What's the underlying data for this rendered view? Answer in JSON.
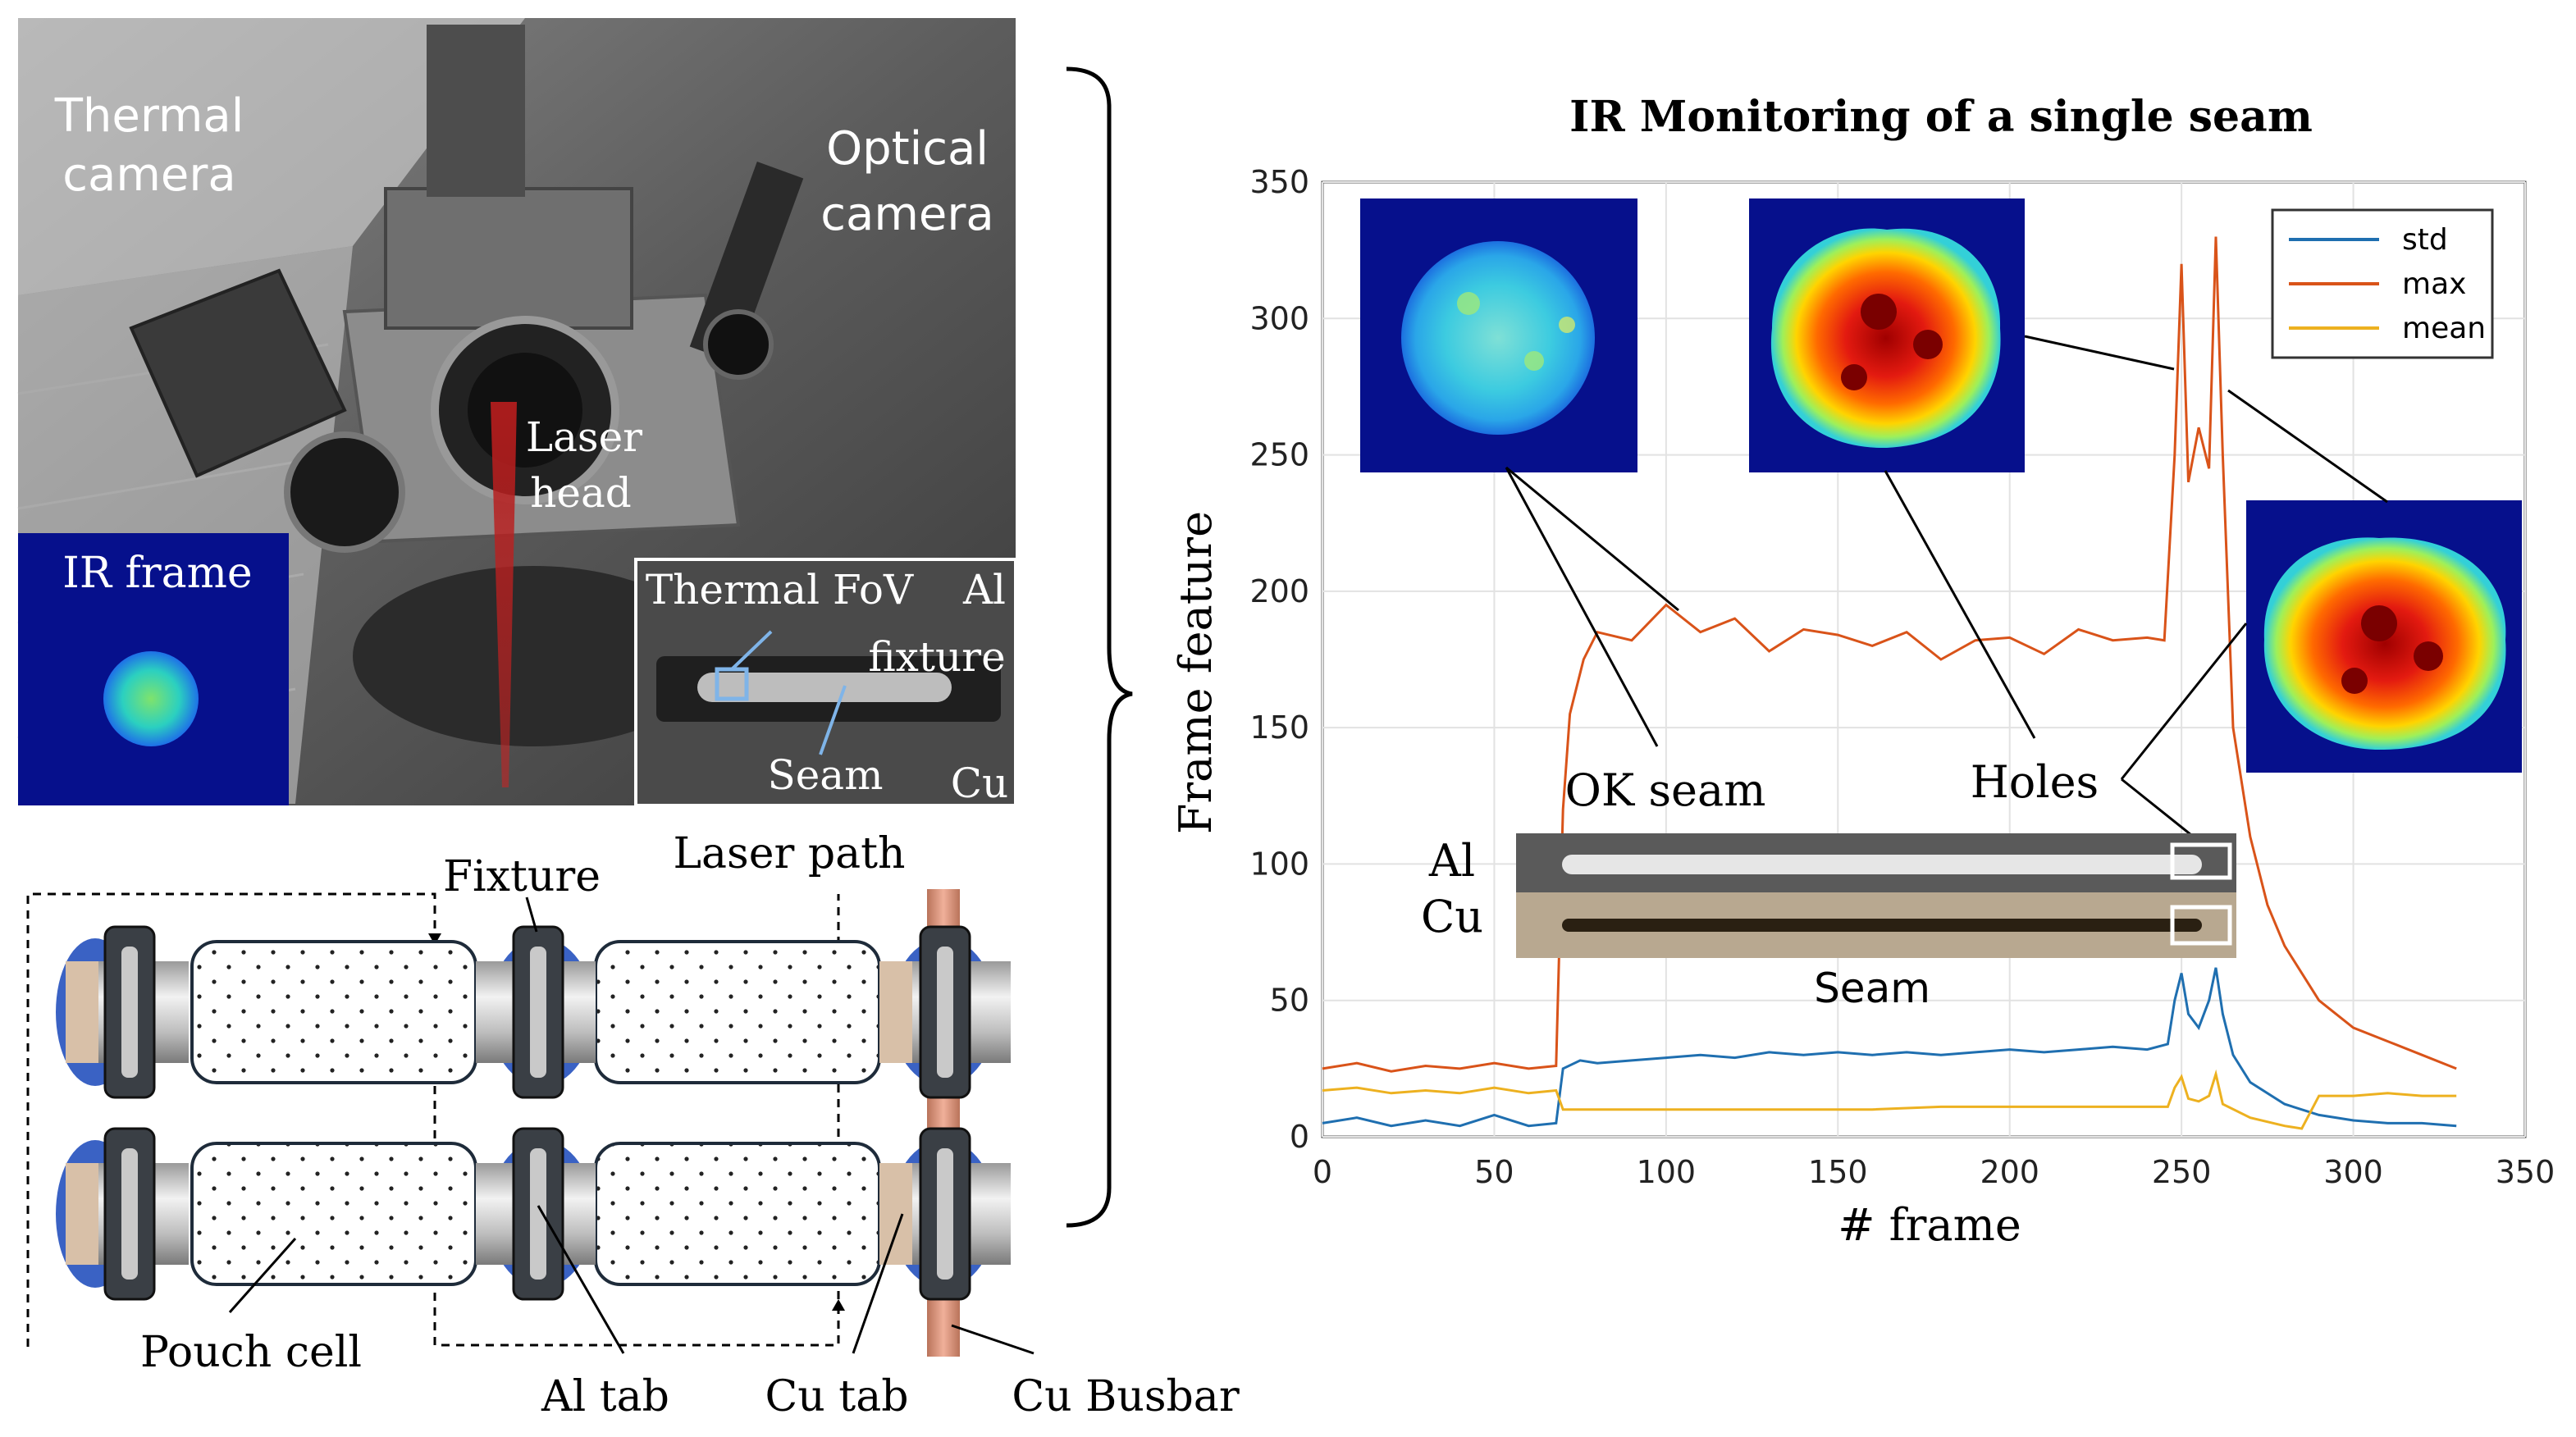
{
  "photo": {
    "thermal_camera": [
      "Thermal",
      "camera"
    ],
    "optical_camera": [
      "Optical",
      "camera"
    ],
    "laser_head": [
      "Laser",
      "head"
    ],
    "ir_frame": "IR frame",
    "inset": {
      "thermal_fov": "Thermal FoV",
      "al": "Al",
      "fixture": "fixture",
      "seam": "Seam",
      "cu": "Cu"
    }
  },
  "schematic": {
    "fixture": "Fixture",
    "laser_path": "Laser path",
    "pouch_cell": "Pouch cell",
    "al_tab": "Al tab",
    "cu_tab": "Cu tab",
    "cu_busbar": "Cu Busbar"
  },
  "chart_data": {
    "type": "line",
    "title": "IR Monitoring of a single seam",
    "xlabel": "# frame",
    "ylabel": "Frame feature",
    "xlim": [
      0,
      350
    ],
    "ylim": [
      0,
      350
    ],
    "xticks": [
      0,
      50,
      100,
      150,
      200,
      250,
      300,
      350
    ],
    "yticks": [
      0,
      50,
      100,
      150,
      200,
      250,
      300,
      350
    ],
    "grid": true,
    "legend_position": "top-right",
    "series": [
      {
        "name": "std",
        "color": "#1f6fb0",
        "points": [
          [
            0,
            5
          ],
          [
            10,
            7
          ],
          [
            20,
            4
          ],
          [
            30,
            6
          ],
          [
            40,
            4
          ],
          [
            50,
            8
          ],
          [
            60,
            4
          ],
          [
            68,
            5
          ],
          [
            70,
            25
          ],
          [
            75,
            28
          ],
          [
            80,
            27
          ],
          [
            90,
            28
          ],
          [
            100,
            29
          ],
          [
            110,
            30
          ],
          [
            120,
            29
          ],
          [
            130,
            31
          ],
          [
            140,
            30
          ],
          [
            150,
            31
          ],
          [
            160,
            30
          ],
          [
            170,
            31
          ],
          [
            180,
            30
          ],
          [
            190,
            31
          ],
          [
            200,
            32
          ],
          [
            210,
            31
          ],
          [
            220,
            32
          ],
          [
            230,
            33
          ],
          [
            240,
            32
          ],
          [
            246,
            34
          ],
          [
            248,
            50
          ],
          [
            250,
            60
          ],
          [
            252,
            45
          ],
          [
            255,
            40
          ],
          [
            258,
            50
          ],
          [
            260,
            62
          ],
          [
            262,
            45
          ],
          [
            265,
            30
          ],
          [
            270,
            20
          ],
          [
            280,
            12
          ],
          [
            290,
            8
          ],
          [
            300,
            6
          ],
          [
            310,
            5
          ],
          [
            320,
            5
          ],
          [
            330,
            4
          ]
        ]
      },
      {
        "name": "max",
        "color": "#d95319",
        "points": [
          [
            0,
            25
          ],
          [
            10,
            27
          ],
          [
            20,
            24
          ],
          [
            30,
            26
          ],
          [
            40,
            25
          ],
          [
            50,
            27
          ],
          [
            60,
            25
          ],
          [
            68,
            26
          ],
          [
            70,
            120
          ],
          [
            72,
            155
          ],
          [
            76,
            175
          ],
          [
            80,
            185
          ],
          [
            90,
            182
          ],
          [
            100,
            195
          ],
          [
            110,
            185
          ],
          [
            120,
            190
          ],
          [
            130,
            178
          ],
          [
            140,
            186
          ],
          [
            150,
            184
          ],
          [
            160,
            180
          ],
          [
            170,
            185
          ],
          [
            180,
            175
          ],
          [
            190,
            182
          ],
          [
            200,
            183
          ],
          [
            210,
            177
          ],
          [
            220,
            186
          ],
          [
            230,
            182
          ],
          [
            240,
            183
          ],
          [
            245,
            182
          ],
          [
            248,
            250
          ],
          [
            250,
            320
          ],
          [
            252,
            240
          ],
          [
            255,
            260
          ],
          [
            258,
            245
          ],
          [
            260,
            330
          ],
          [
            262,
            250
          ],
          [
            265,
            150
          ],
          [
            270,
            110
          ],
          [
            275,
            85
          ],
          [
            280,
            70
          ],
          [
            290,
            50
          ],
          [
            300,
            40
          ],
          [
            310,
            35
          ],
          [
            320,
            30
          ],
          [
            330,
            25
          ]
        ]
      },
      {
        "name": "mean",
        "color": "#edb120",
        "points": [
          [
            0,
            17
          ],
          [
            10,
            18
          ],
          [
            20,
            16
          ],
          [
            30,
            17
          ],
          [
            40,
            16
          ],
          [
            50,
            18
          ],
          [
            60,
            16
          ],
          [
            68,
            17
          ],
          [
            70,
            10
          ],
          [
            80,
            10
          ],
          [
            100,
            10
          ],
          [
            120,
            10
          ],
          [
            140,
            10
          ],
          [
            160,
            10
          ],
          [
            180,
            11
          ],
          [
            200,
            11
          ],
          [
            220,
            11
          ],
          [
            240,
            11
          ],
          [
            246,
            11
          ],
          [
            248,
            18
          ],
          [
            250,
            22
          ],
          [
            252,
            14
          ],
          [
            255,
            13
          ],
          [
            258,
            15
          ],
          [
            260,
            23
          ],
          [
            262,
            12
          ],
          [
            270,
            7
          ],
          [
            280,
            4
          ],
          [
            285,
            3
          ],
          [
            290,
            15
          ],
          [
            300,
            15
          ],
          [
            310,
            16
          ],
          [
            320,
            15
          ],
          [
            330,
            15
          ]
        ]
      }
    ],
    "annotations": {
      "ok_seam": "OK seam",
      "holes": "Holes",
      "seam": "Seam",
      "al": "Al",
      "cu": "Cu"
    }
  }
}
